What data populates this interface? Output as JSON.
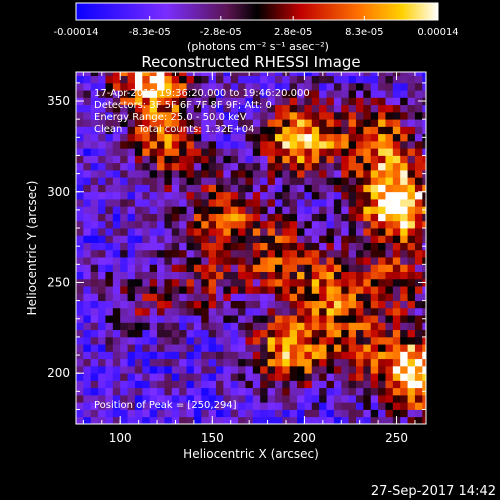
{
  "chart_data": {
    "type": "heatmap",
    "title": "Reconstructed RHESSI Image",
    "xlabel": "Heliocentric X (arcsec)",
    "ylabel": "Heliocentric Y (arcsec)",
    "xlim": [
      76,
      266
    ],
    "ylim": [
      172,
      366
    ],
    "x_ticks": [
      100,
      150,
      200,
      250
    ],
    "y_ticks": [
      200,
      250,
      300,
      350
    ],
    "colorbar": {
      "ticks": [
        "-0.00014",
        "-8.3e-05",
        "-2.8e-05",
        "2.8e-05",
        "8.3e-05",
        "0.00014"
      ],
      "tick_values": [
        -0.00014,
        -8.3e-05,
        -2.8e-05,
        2.8e-05,
        8.3e-05,
        0.00014
      ],
      "range": [
        -0.00014,
        0.00014
      ],
      "units_line": "(photons cm⁻² s⁻¹ asec⁻²)",
      "colormap": "RHESSI blue-purple-red-orange-yellow-white"
    },
    "annotations": [
      "17-Apr-2015 19:36:20.000 to 19:46:20.000",
      "Detectors: 3F 5F 6F 7F 8F 9F; Att: 0",
      "Energy Range: 25.0 - 50.0 keV",
      "Clean     Total counts: 1.32E+04",
      "Position of Peak = [250,294]"
    ],
    "peak_position": [
      250,
      294
    ],
    "footer_date": "27-Sep-2017 14:42",
    "sources": [
      {
        "x": 250,
        "y": 294,
        "peak": 1.0
      },
      {
        "x": 262,
        "y": 200,
        "peak": 0.95
      },
      {
        "x": 198,
        "y": 330,
        "peak": 0.8
      },
      {
        "x": 118,
        "y": 362,
        "peak": 0.85
      },
      {
        "x": 125,
        "y": 325,
        "peak": 0.55
      },
      {
        "x": 155,
        "y": 288,
        "peak": 0.55
      },
      {
        "x": 190,
        "y": 212,
        "peak": 0.7
      },
      {
        "x": 185,
        "y": 265,
        "peak": 0.5
      },
      {
        "x": 215,
        "y": 245,
        "peak": 0.55
      },
      {
        "x": 240,
        "y": 330,
        "peak": 0.6
      },
      {
        "x": 228,
        "y": 215,
        "peak": 0.4
      },
      {
        "x": 145,
        "y": 250,
        "peak": 0.35
      },
      {
        "x": 250,
        "y": 250,
        "peak": 0.4
      },
      {
        "x": 108,
        "y": 240,
        "peak": 0.3
      }
    ]
  }
}
